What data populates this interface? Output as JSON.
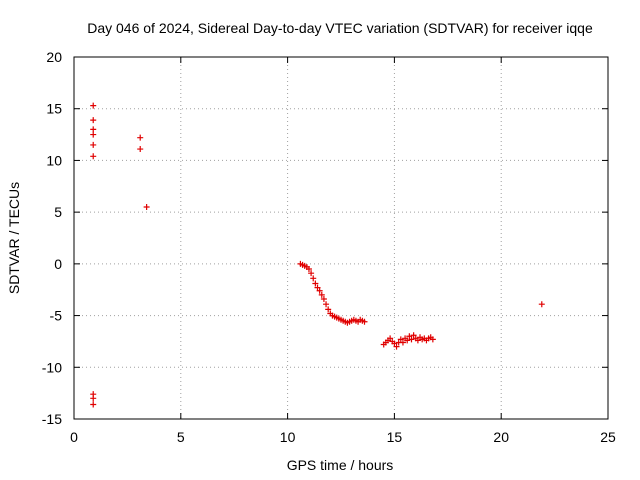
{
  "chart_data": {
    "type": "scatter",
    "title": "Day 046 of 2024, Sidereal Day-to-day VTEC variation (SDTVAR) for receiver iqqe",
    "xlabel": "GPS time / hours",
    "ylabel": "SDTVAR / TECUs",
    "xlim": [
      0,
      25
    ],
    "ylim": [
      -15,
      20
    ],
    "xticks": [
      0,
      5,
      10,
      15,
      20,
      25
    ],
    "yticks": [
      -15,
      -10,
      -5,
      0,
      5,
      10,
      15,
      20
    ],
    "xtick_labels": [
      "0",
      "5",
      "10",
      "15",
      "20",
      "25"
    ],
    "ytick_labels": [
      "-15",
      "-10",
      "-5",
      "0",
      "5",
      "10",
      "15",
      "20"
    ],
    "grid": true,
    "marker": "plus",
    "color": "#e00000",
    "series": [
      {
        "name": "SDTVAR",
        "points": [
          [
            0.9,
            15.3
          ],
          [
            0.9,
            13.9
          ],
          [
            0.9,
            13.0
          ],
          [
            0.9,
            12.5
          ],
          [
            0.9,
            11.5
          ],
          [
            0.9,
            10.4
          ],
          [
            0.9,
            -12.6
          ],
          [
            0.9,
            -13.0
          ],
          [
            0.9,
            -13.6
          ],
          [
            3.1,
            12.2
          ],
          [
            3.1,
            11.1
          ],
          [
            3.4,
            5.5
          ],
          [
            10.6,
            0.0
          ],
          [
            10.7,
            -0.1
          ],
          [
            10.8,
            -0.2
          ],
          [
            10.9,
            -0.3
          ],
          [
            11.0,
            -0.5
          ],
          [
            11.1,
            -0.9
          ],
          [
            11.2,
            -1.4
          ],
          [
            11.3,
            -1.9
          ],
          [
            11.4,
            -2.3
          ],
          [
            11.5,
            -2.6
          ],
          [
            11.6,
            -3.0
          ],
          [
            11.7,
            -3.4
          ],
          [
            11.8,
            -3.9
          ],
          [
            11.9,
            -4.4
          ],
          [
            12.0,
            -4.8
          ],
          [
            12.1,
            -5.0
          ],
          [
            12.2,
            -5.1
          ],
          [
            12.3,
            -5.2
          ],
          [
            12.4,
            -5.3
          ],
          [
            12.5,
            -5.4
          ],
          [
            12.6,
            -5.5
          ],
          [
            12.7,
            -5.6
          ],
          [
            12.8,
            -5.7
          ],
          [
            12.9,
            -5.6
          ],
          [
            13.0,
            -5.5
          ],
          [
            13.1,
            -5.4
          ],
          [
            13.2,
            -5.5
          ],
          [
            13.3,
            -5.6
          ],
          [
            13.4,
            -5.4
          ],
          [
            13.5,
            -5.5
          ],
          [
            13.6,
            -5.6
          ],
          [
            14.5,
            -7.8
          ],
          [
            14.6,
            -7.6
          ],
          [
            14.7,
            -7.4
          ],
          [
            14.8,
            -7.2
          ],
          [
            14.9,
            -7.5
          ],
          [
            15.0,
            -7.7
          ],
          [
            15.1,
            -8.0
          ],
          [
            15.2,
            -7.6
          ],
          [
            15.3,
            -7.3
          ],
          [
            15.4,
            -7.6
          ],
          [
            15.5,
            -7.2
          ],
          [
            15.6,
            -7.4
          ],
          [
            15.7,
            -7.0
          ],
          [
            15.8,
            -7.3
          ],
          [
            15.9,
            -6.9
          ],
          [
            16.0,
            -7.2
          ],
          [
            16.1,
            -7.4
          ],
          [
            16.2,
            -7.1
          ],
          [
            16.3,
            -7.3
          ],
          [
            16.4,
            -7.2
          ],
          [
            16.5,
            -7.4
          ],
          [
            16.6,
            -7.2
          ],
          [
            16.7,
            -7.1
          ],
          [
            16.8,
            -7.3
          ],
          [
            21.9,
            -3.9
          ]
        ]
      }
    ]
  }
}
